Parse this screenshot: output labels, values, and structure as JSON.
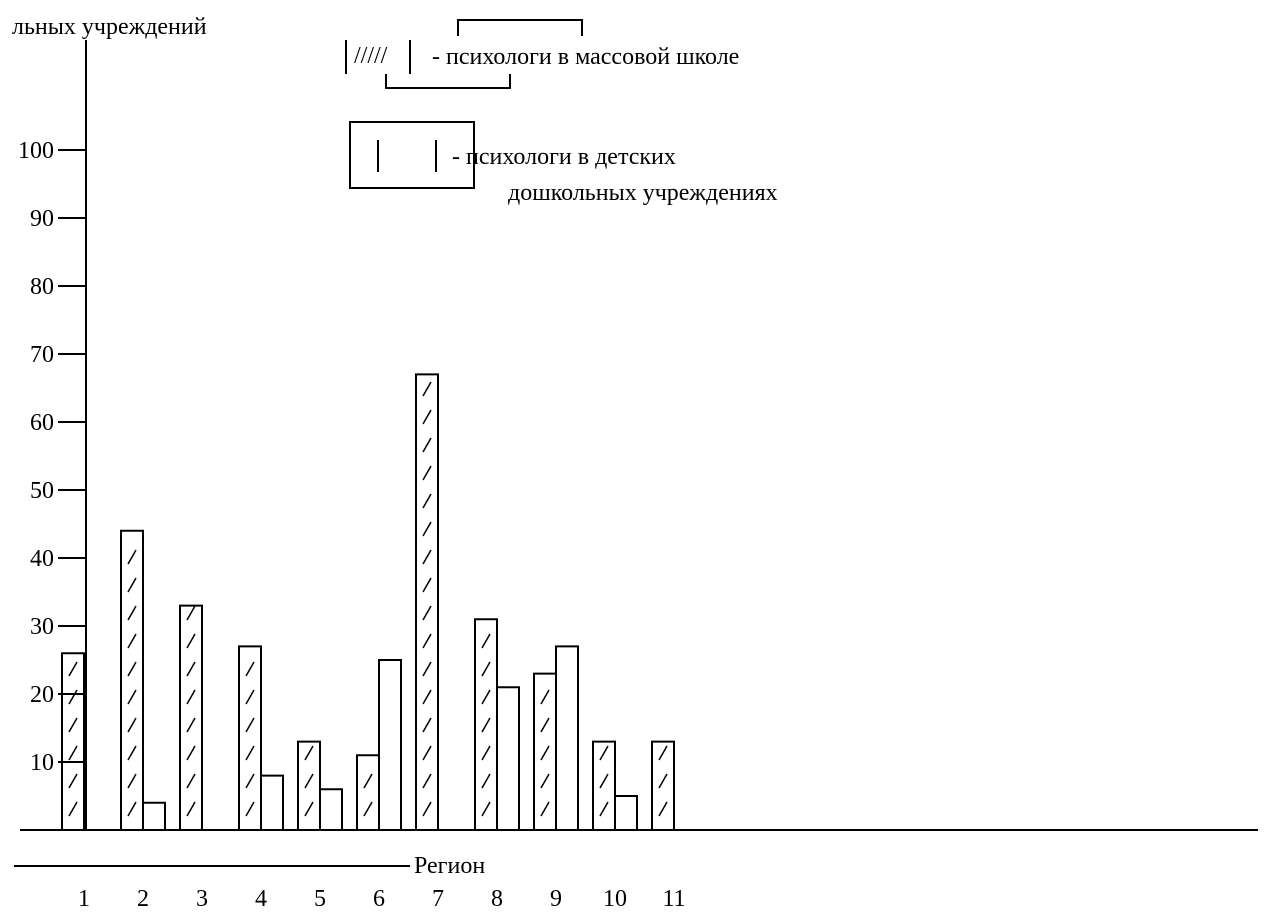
{
  "chart_data": {
    "type": "bar",
    "title": "",
    "ylabel": "льных учреждений",
    "xlabel": "Регион",
    "ylim": [
      0,
      105
    ],
    "y_ticks": [
      10,
      20,
      30,
      40,
      50,
      60,
      70,
      80,
      90,
      100
    ],
    "categories": [
      "1",
      "2",
      "3",
      "4",
      "5",
      "6",
      "7",
      "8",
      "9",
      "10",
      "11"
    ],
    "legend": {
      "placement": "top-center",
      "items": [
        {
          "swatch": "/////",
          "label": "- психологи в массовой школе"
        },
        {
          "swatch": "",
          "label_lines": [
            "- психологи в детских",
            "дошкольных учреждениях"
          ]
        }
      ]
    },
    "series": [
      {
        "values": [
          26,
          44,
          33,
          27,
          13,
          11,
          67,
          31,
          23,
          13,
          13
        ]
      },
      {
        "values": [
          0,
          4,
          0,
          8,
          6,
          25,
          0,
          21,
          27,
          5,
          0
        ]
      }
    ]
  }
}
